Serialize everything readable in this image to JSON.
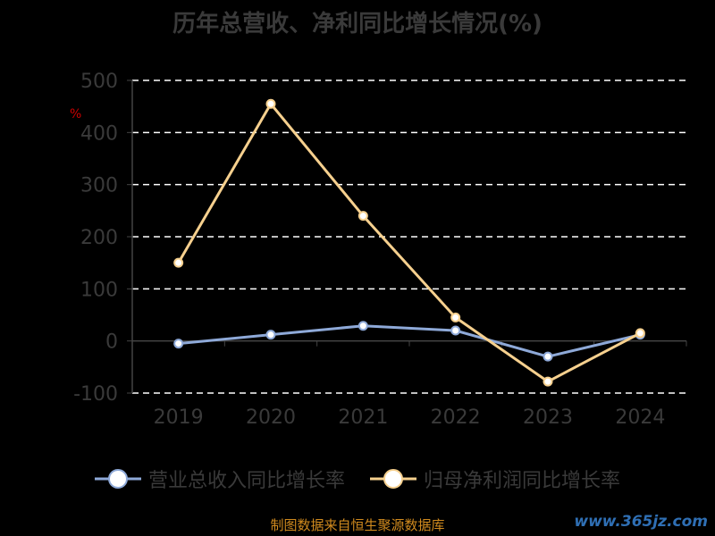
{
  "title": "历年总营收、净利同比增长情况(%)",
  "unit_label": "%",
  "source": "制图数据来自恒生聚源数据库",
  "watermark": "www.365jz.com",
  "chart_data": {
    "type": "line",
    "categories": [
      "2019",
      "2020",
      "2021",
      "2022",
      "2023",
      "2024"
    ],
    "ylim": [
      -100,
      500
    ],
    "yticks": [
      -100,
      0,
      100,
      200,
      300,
      400,
      500
    ],
    "grid": true,
    "legend_position": "bottom",
    "series": [
      {
        "name": "营业总收入同比增长率",
        "values": [
          -5,
          12,
          29,
          20,
          -30,
          12
        ],
        "color": "#8ea9d8"
      },
      {
        "name": "归母净利润同比增长率",
        "values": [
          150,
          455,
          240,
          45,
          -78,
          15
        ],
        "color": "#f6d08e"
      }
    ]
  }
}
